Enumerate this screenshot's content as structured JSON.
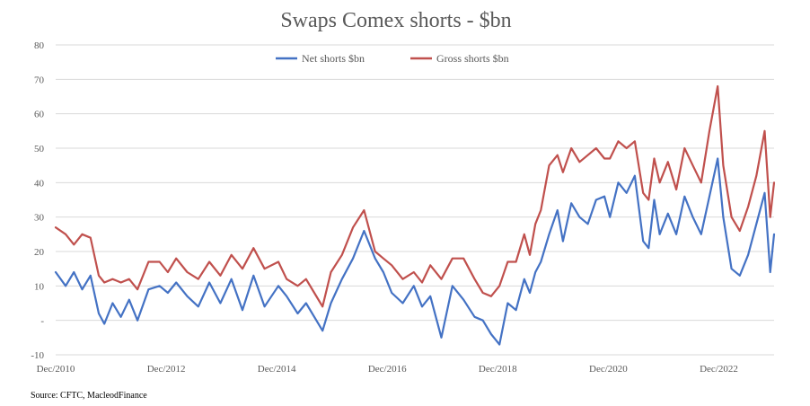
{
  "chart_data": {
    "type": "line",
    "title": "Swaps Comex shorts - $bn",
    "source": "Source: CFTC, MacleodFinance",
    "xlabel": "",
    "ylabel": "",
    "ylim": [
      -10,
      80
    ],
    "yticks": [
      -10,
      0,
      10,
      20,
      30,
      40,
      50,
      60,
      70,
      80
    ],
    "ytick_labels": [
      "-10",
      "-",
      "10",
      "20",
      "30",
      "40",
      "50",
      "60",
      "70",
      "80"
    ],
    "xlim": [
      2010.92,
      2023.92
    ],
    "xticks": [
      2010.92,
      2012.92,
      2014.92,
      2016.92,
      2018.92,
      2020.92,
      2022.92
    ],
    "xtick_labels": [
      "Dec/2010",
      "Dec/2012",
      "Dec/2014",
      "Dec/2016",
      "Dec/2018",
      "Dec/2020",
      "Dec/2022"
    ],
    "legend_position": "top-center",
    "grid": true,
    "series": [
      {
        "name": "Net shorts $bn",
        "color": "#4472c4",
        "x": [
          2010.92,
          2011.1,
          2011.25,
          2011.4,
          2011.55,
          2011.7,
          2011.8,
          2011.95,
          2012.1,
          2012.25,
          2012.4,
          2012.6,
          2012.8,
          2012.95,
          2013.1,
          2013.3,
          2013.5,
          2013.7,
          2013.9,
          2014.1,
          2014.3,
          2014.5,
          2014.7,
          2014.95,
          2015.1,
          2015.3,
          2015.45,
          2015.6,
          2015.75,
          2015.9,
          2016.1,
          2016.3,
          2016.5,
          2016.7,
          2016.85,
          2017.0,
          2017.2,
          2017.4,
          2017.55,
          2017.7,
          2017.9,
          2018.1,
          2018.3,
          2018.5,
          2018.65,
          2018.8,
          2018.95,
          2019.1,
          2019.25,
          2019.4,
          2019.5,
          2019.6,
          2019.7,
          2019.85,
          2020.0,
          2020.1,
          2020.25,
          2020.4,
          2020.55,
          2020.7,
          2020.85,
          2020.95,
          2021.1,
          2021.25,
          2021.4,
          2021.55,
          2021.65,
          2021.75,
          2021.85,
          2022.0,
          2022.15,
          2022.3,
          2022.45,
          2022.6,
          2022.75,
          2022.9,
          2023.0,
          2023.15,
          2023.3,
          2023.45,
          2023.6,
          2023.75,
          2023.85,
          2023.92
        ],
        "values": [
          14,
          10,
          14,
          9,
          13,
          2,
          -1,
          5,
          1,
          6,
          0,
          9,
          10,
          8,
          11,
          7,
          4,
          11,
          5,
          12,
          3,
          13,
          4,
          10,
          7,
          2,
          5,
          1,
          -3,
          5,
          12,
          18,
          26,
          18,
          14,
          8,
          5,
          10,
          4,
          7,
          -5,
          10,
          6,
          1,
          0,
          -4,
          -7,
          5,
          3,
          12,
          8,
          14,
          17,
          25,
          32,
          23,
          34,
          30,
          28,
          35,
          36,
          30,
          40,
          37,
          42,
          23,
          21,
          35,
          25,
          31,
          25,
          36,
          30,
          25,
          36,
          47,
          30,
          15,
          13,
          19,
          28,
          37,
          14,
          25
        ]
      },
      {
        "name": "Gross shorts $bn",
        "color": "#c0504d",
        "x": [
          2010.92,
          2011.1,
          2011.25,
          2011.4,
          2011.55,
          2011.7,
          2011.8,
          2011.95,
          2012.1,
          2012.25,
          2012.4,
          2012.6,
          2012.8,
          2012.95,
          2013.1,
          2013.3,
          2013.5,
          2013.7,
          2013.9,
          2014.1,
          2014.3,
          2014.5,
          2014.7,
          2014.95,
          2015.1,
          2015.3,
          2015.45,
          2015.6,
          2015.75,
          2015.9,
          2016.1,
          2016.3,
          2016.5,
          2016.7,
          2016.85,
          2017.0,
          2017.2,
          2017.4,
          2017.55,
          2017.7,
          2017.9,
          2018.1,
          2018.3,
          2018.5,
          2018.65,
          2018.8,
          2018.95,
          2019.1,
          2019.25,
          2019.4,
          2019.5,
          2019.6,
          2019.7,
          2019.85,
          2020.0,
          2020.1,
          2020.25,
          2020.4,
          2020.55,
          2020.7,
          2020.85,
          2020.95,
          2021.1,
          2021.25,
          2021.4,
          2021.55,
          2021.65,
          2021.75,
          2021.85,
          2022.0,
          2022.15,
          2022.3,
          2022.45,
          2022.6,
          2022.75,
          2022.9,
          2023.0,
          2023.15,
          2023.3,
          2023.45,
          2023.6,
          2023.75,
          2023.85,
          2023.92
        ],
        "values": [
          27,
          25,
          22,
          25,
          24,
          13,
          11,
          12,
          11,
          12,
          9,
          17,
          17,
          14,
          18,
          14,
          12,
          17,
          13,
          19,
          15,
          21,
          15,
          17,
          12,
          10,
          12,
          8,
          4,
          14,
          19,
          27,
          32,
          20,
          18,
          16,
          12,
          14,
          11,
          16,
          12,
          18,
          18,
          12,
          8,
          7,
          10,
          17,
          17,
          25,
          19,
          28,
          32,
          45,
          48,
          43,
          50,
          46,
          48,
          50,
          47,
          47,
          52,
          50,
          52,
          37,
          35,
          47,
          40,
          46,
          38,
          50,
          45,
          40,
          55,
          68,
          45,
          30,
          26,
          33,
          42,
          55,
          30,
          40
        ]
      }
    ]
  }
}
